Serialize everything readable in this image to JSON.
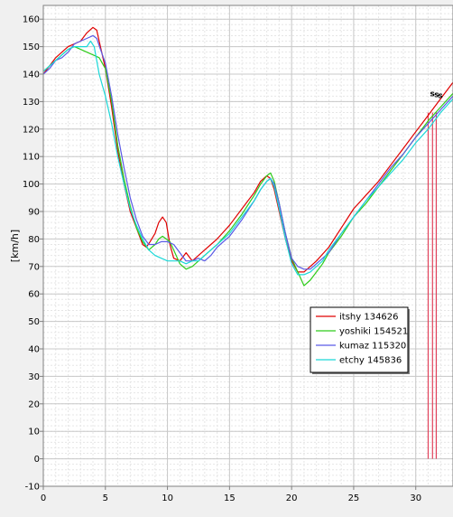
{
  "chart_data": {
    "type": "line",
    "title": "",
    "xlabel": "",
    "ylabel": "[km/h]",
    "xlim": [
      0,
      33
    ],
    "ylim": [
      -10,
      165
    ],
    "x_ticks": [
      0,
      5,
      10,
      15,
      20,
      25,
      30
    ],
    "y_ticks": [
      -10,
      0,
      10,
      20,
      30,
      40,
      50,
      60,
      70,
      80,
      90,
      100,
      110,
      120,
      130,
      140,
      150,
      160
    ],
    "grid": true,
    "legend_position": "lower-right",
    "series": [
      {
        "name": "itshy 134626",
        "color": "#e00000",
        "x": [
          0,
          0.5,
          1,
          1.5,
          2,
          2.5,
          3,
          3.5,
          4,
          4.3,
          4.6,
          5,
          5.5,
          6,
          6.5,
          7,
          7.5,
          8,
          8.3,
          8.6,
          9,
          9.3,
          9.6,
          9.9,
          10.2,
          10.5,
          11,
          11.5,
          12,
          12.5,
          13,
          13.5,
          14,
          15,
          16,
          17,
          17.5,
          18,
          18.3,
          18.6,
          19,
          19.5,
          20,
          20.5,
          21,
          21.5,
          22,
          23,
          24,
          25,
          26,
          27,
          28,
          29,
          30,
          31,
          32,
          33
        ],
        "y": [
          140,
          143,
          146,
          148,
          150,
          151,
          152,
          155,
          157,
          156,
          150,
          142,
          128,
          112,
          100,
          90,
          84,
          78,
          77,
          79,
          82,
          86,
          88,
          86,
          78,
          73,
          72,
          75,
          72,
          74,
          76,
          78,
          80,
          85,
          91,
          97,
          101,
          103,
          102,
          98,
          90,
          80,
          72,
          68,
          68,
          70,
          72,
          77,
          84,
          91,
          96,
          101,
          107,
          113,
          119,
          125,
          131,
          137
        ]
      },
      {
        "name": "yoshiki 154521",
        "color": "#2ecc1a",
        "x": [
          0,
          0.5,
          1,
          1.5,
          2,
          2.5,
          3,
          3.5,
          4,
          4.5,
          5,
          5.5,
          6,
          6.5,
          7,
          7.5,
          8,
          8.5,
          9,
          9.3,
          9.6,
          9.9,
          10.2,
          10.5,
          11,
          11.5,
          12,
          12.5,
          13,
          13.5,
          14,
          15,
          16,
          17,
          17.5,
          18,
          18.3,
          18.6,
          19,
          19.5,
          20,
          20.5,
          21,
          21.5,
          22,
          22.5,
          23,
          24,
          25,
          26,
          27,
          28,
          29,
          30,
          31,
          32,
          33
        ],
        "y": [
          141,
          143,
          145,
          147,
          149,
          150,
          149,
          148,
          147,
          146,
          142,
          130,
          114,
          102,
          92,
          84,
          79,
          76,
          78,
          80,
          81,
          80,
          79,
          76,
          71,
          69,
          70,
          72,
          74,
          76,
          78,
          83,
          89,
          96,
          100,
          103,
          104,
          101,
          93,
          82,
          73,
          68,
          63,
          65,
          68,
          71,
          75,
          81,
          88,
          93,
          99,
          105,
          111,
          117,
          123,
          128,
          133
        ]
      },
      {
        "name": "kumaz 115320",
        "color": "#5a5ae6",
        "x": [
          0,
          0.5,
          1,
          1.5,
          2,
          2.5,
          3,
          3.5,
          4,
          4.3,
          4.6,
          5,
          5.5,
          6,
          6.5,
          7,
          7.5,
          8,
          8.5,
          9,
          9.5,
          10,
          10.5,
          11,
          11.5,
          12,
          12.5,
          13,
          13.5,
          14,
          15,
          16,
          17,
          17.5,
          18,
          18.3,
          18.6,
          19,
          19.5,
          20,
          20.5,
          21,
          21.5,
          22,
          23,
          24,
          25,
          26,
          27,
          28,
          29,
          30,
          31,
          32,
          33
        ],
        "y": [
          140,
          142,
          145,
          146,
          148,
          151,
          152,
          153,
          154,
          153,
          149,
          144,
          132,
          118,
          106,
          95,
          87,
          81,
          78,
          78,
          79,
          79,
          78,
          75,
          72,
          72,
          73,
          72,
          74,
          77,
          81,
          87,
          94,
          98,
          101,
          102,
          100,
          93,
          82,
          73,
          70,
          69,
          69,
          71,
          75,
          82,
          88,
          94,
          100,
          106,
          111,
          117,
          122,
          127,
          132
        ]
      },
      {
        "name": "etchy 145836",
        "color": "#1ad8d8",
        "x": [
          0,
          0.5,
          1,
          1.5,
          2,
          2.5,
          3,
          3.5,
          3.8,
          4.1,
          4.5,
          5,
          5.5,
          6,
          6.5,
          7,
          7.5,
          8,
          8.5,
          9,
          9.5,
          10,
          10.5,
          11,
          11.5,
          12,
          12.5,
          13,
          13.5,
          14,
          15,
          16,
          17,
          17.5,
          18,
          18.3,
          18.6,
          19,
          19.5,
          20,
          20.5,
          21,
          21.5,
          22,
          22.5,
          23,
          24,
          25,
          26,
          27,
          28,
          29,
          30,
          31,
          32,
          33
        ],
        "y": [
          141,
          143,
          145,
          147,
          149,
          150,
          150,
          150,
          152,
          150,
          140,
          132,
          122,
          110,
          100,
          91,
          85,
          80,
          76,
          74,
          73,
          72,
          72,
          72,
          71,
          72,
          72,
          74,
          76,
          78,
          82,
          88,
          94,
          98,
          101,
          102,
          99,
          91,
          80,
          71,
          67,
          67,
          68,
          70,
          72,
          76,
          82,
          88,
          94,
          99,
          104,
          109,
          115,
          120,
          126,
          131
        ]
      }
    ],
    "vertical_markers": [
      {
        "x": 31.0,
        "color": "#e0405a"
      },
      {
        "x": 31.35,
        "color": "#e0405a"
      },
      {
        "x": 31.65,
        "color": "#e0405a"
      }
    ],
    "marker_labels": [
      {
        "text": "s",
        "x": 31.0
      },
      {
        "text": "s",
        "x": 31.35
      },
      {
        "text": "s",
        "x": 31.65
      }
    ]
  }
}
